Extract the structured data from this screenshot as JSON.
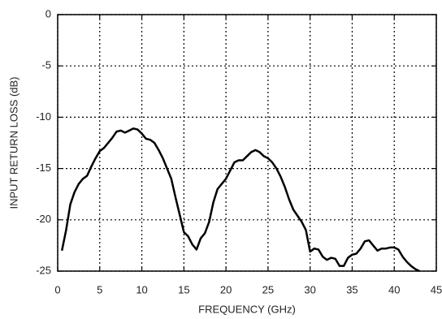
{
  "chart_data": {
    "type": "line",
    "xlabel": "FREQUENCY (GHz)",
    "ylabel": "INPUT RETURN LOSS (dB)",
    "xlim": [
      0,
      45
    ],
    "xticks": [
      0,
      5,
      10,
      15,
      20,
      25,
      30,
      35,
      40,
      45
    ],
    "ylim": [
      -25,
      0
    ],
    "yticks": [
      0,
      -5,
      -10,
      -15,
      -20,
      -25
    ],
    "grid": true,
    "x": [
      0.5,
      1,
      1.5,
      2,
      2.5,
      3,
      3.5,
      4,
      4.5,
      5,
      5.5,
      6,
      6.5,
      7,
      7.5,
      8,
      8.5,
      9,
      9.5,
      10,
      10.5,
      11,
      11.5,
      12,
      12.5,
      13,
      13.5,
      14,
      14.5,
      15,
      15.5,
      16,
      16.5,
      17,
      17.5,
      18,
      18.5,
      19,
      19.5,
      20,
      20.5,
      21,
      21.5,
      22,
      22.5,
      23,
      23.5,
      24,
      24.5,
      25,
      25.5,
      26,
      26.5,
      27,
      27.5,
      28,
      28.5,
      29,
      29.5,
      30,
      30.5,
      31,
      31.5,
      32,
      32.5,
      33,
      33.5,
      34,
      34.5,
      35,
      35.5,
      36,
      36.5,
      37,
      37.5,
      38,
      38.5,
      39,
      39.5,
      40,
      40.5,
      41,
      41.5,
      42,
      42.5,
      43
    ],
    "series": [
      {
        "color": "#000000",
        "values": [
          -23,
          -21,
          -18.5,
          -17.3,
          -16.5,
          -16,
          -15.7,
          -14.8,
          -14,
          -13.3,
          -13,
          -12.5,
          -12,
          -11.4,
          -11.3,
          -11.5,
          -11.3,
          -11.1,
          -11.2,
          -11.6,
          -12.1,
          -12.2,
          -12.5,
          -13.2,
          -14,
          -15,
          -16,
          -17.8,
          -19.5,
          -21.2,
          -21.6,
          -22.4,
          -22.9,
          -21.8,
          -21.3,
          -20.2,
          -18.3,
          -17,
          -16.5,
          -16,
          -15.2,
          -14.4,
          -14.2,
          -14.2,
          -13.8,
          -13.4,
          -13.2,
          -13.4,
          -13.8,
          -14,
          -14.4,
          -15,
          -15.8,
          -16.8,
          -18,
          -19,
          -19.6,
          -20.2,
          -21,
          -23.1,
          -22.8,
          -22.9,
          -23.6,
          -23.9,
          -23.7,
          -23.8,
          -24.5,
          -24.5,
          -23.7,
          -23.4,
          -23.3,
          -22.8,
          -22.1,
          -22,
          -22.5,
          -23,
          -22.8,
          -22.8,
          -22.7,
          -22.7,
          -22.9,
          -23.6,
          -24.1,
          -24.5,
          -24.8,
          -25
        ]
      }
    ]
  }
}
